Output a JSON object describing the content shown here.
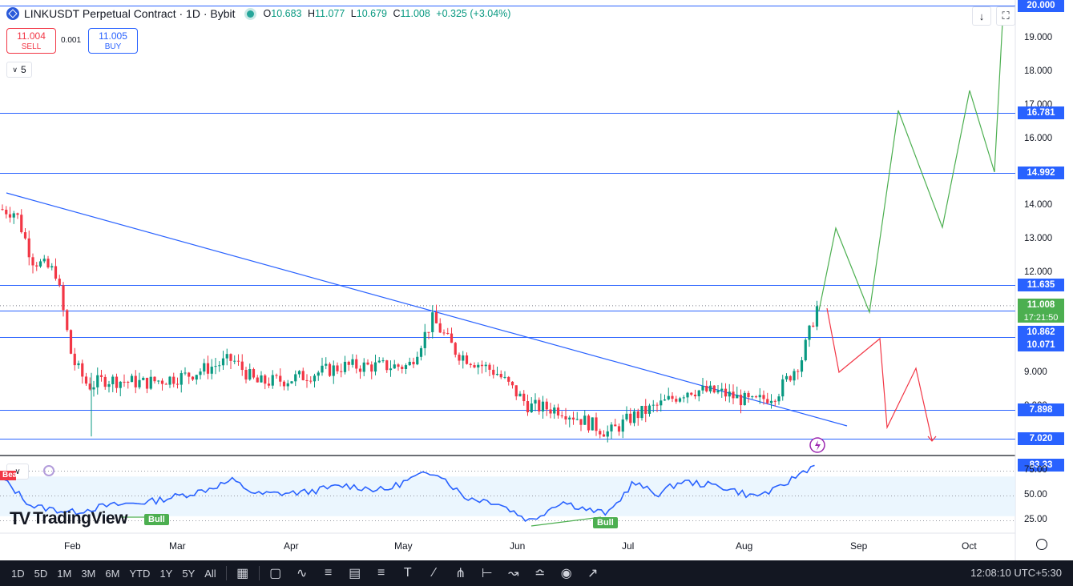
{
  "header": {
    "symbol": "LINKUSDT Perpetual Contract · 1D · Bybit",
    "o_label": "O",
    "o": "10.683",
    "h_label": "H",
    "h": "11.077",
    "l_label": "L",
    "l": "10.679",
    "c_label": "C",
    "c": "11.008",
    "change": "+0.325 (+3.04%)"
  },
  "trade": {
    "sell_price": "11.004",
    "sell_label": "SELL",
    "spread": "0.001",
    "buy_price": "11.005",
    "buy_label": "BUY"
  },
  "indicators_toggle": "5",
  "price_axis_labels": [
    "20.000",
    "19.000",
    "18.000",
    "17.000",
    "16.000",
    "15.000",
    "14.000",
    "13.000",
    "12.000",
    "11.000",
    "10.000",
    "9.000",
    "8.000"
  ],
  "price_tags": [
    {
      "value": "20.000",
      "kind": "blue"
    },
    {
      "value": "16.781",
      "kind": "blue"
    },
    {
      "value": "14.992",
      "kind": "blue"
    },
    {
      "value": "11.635",
      "kind": "blue"
    },
    {
      "value": "11.008",
      "kind": "green"
    },
    {
      "value": "10.862",
      "kind": "blue"
    },
    {
      "value": "10.071",
      "kind": "blue"
    },
    {
      "value": "7.898",
      "kind": "blue"
    },
    {
      "value": "7.020",
      "kind": "blue"
    }
  ],
  "countdown": "17:21:50",
  "rsi": {
    "value": "83.33",
    "levels": [
      "75.00",
      "50.00",
      "25.00"
    ]
  },
  "x_axis": [
    "Feb",
    "Mar",
    "Apr",
    "May",
    "Jun",
    "Jul",
    "Aug",
    "Sep",
    "Oct"
  ],
  "signals": [
    "Bull",
    "Bull",
    "Bear"
  ],
  "logo": "TradingView",
  "ranges": [
    "1D",
    "5D",
    "1M",
    "3M",
    "6M",
    "YTD",
    "1Y",
    "5Y",
    "All"
  ],
  "clock": "12:08:10 UTC+5:30",
  "colors": {
    "up": "#089981",
    "down": "#f23645",
    "line": "#2962ff",
    "accent": "#2962ff",
    "bull": "#4caf50"
  }
}
